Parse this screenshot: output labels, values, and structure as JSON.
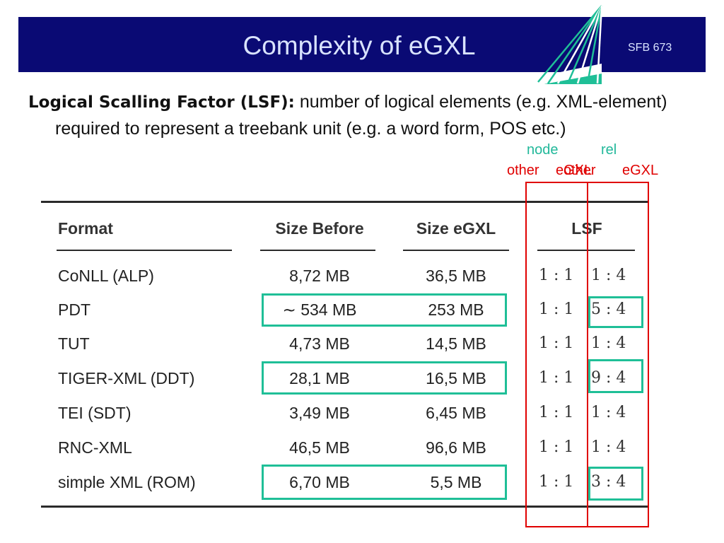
{
  "header": {
    "title": "Complexity of eGXL",
    "code": "SFB 673",
    "colors": {
      "banner": "#0a0a74",
      "title_text": "#d9e3ff"
    }
  },
  "intro": {
    "term": "Logical Scalling Factor (LSF):",
    "definition": "number of logical elements (e.g. XML-element) required to represent a treebank unit (e.g. a word form, POS etc.)"
  },
  "annotations": {
    "node": "node",
    "rel": "rel",
    "other": "other",
    "egxl_a": "eGXL",
    "other_b": "other",
    "egxl_b": "eGXL",
    "colors": {
      "green": "#21b89a",
      "red": "#e00000",
      "highlight_box": "#1fbf97"
    }
  },
  "table": {
    "headers": [
      "Format",
      "Size Before",
      "Size eGXL",
      "LSF"
    ],
    "rows": [
      {
        "format": "CoNLL (ALP)",
        "before": "8,72 MB",
        "egxl": "36,5 MB",
        "lsf_left": "1 : 1",
        "lsf_right": "1 : 4"
      },
      {
        "format": "PDT",
        "before": "∼ 534 MB",
        "egxl": "253 MB",
        "lsf_left": "1 : 1",
        "lsf_right": "5 : 4"
      },
      {
        "format": "TUT",
        "before": "4,73 MB",
        "egxl": "14,5 MB",
        "lsf_left": "1 : 1",
        "lsf_right": "1 : 4"
      },
      {
        "format": "TIGER-XML (DDT)",
        "before": "28,1 MB",
        "egxl": "16,5 MB",
        "lsf_left": "1 : 1",
        "lsf_right": "9 : 4"
      },
      {
        "format": "TEI (SDT)",
        "before": "3,49 MB",
        "egxl": "6,45 MB",
        "lsf_left": "1 : 1",
        "lsf_right": "1 : 4"
      },
      {
        "format": "RNC-XML",
        "before": "46,5 MB",
        "egxl": "96,6 MB",
        "lsf_left": "1 : 1",
        "lsf_right": "1 : 4"
      },
      {
        "format": "simple XML (ROM)",
        "before": "6,70 MB",
        "egxl": "5,5 MB",
        "lsf_left": "1 : 1",
        "lsf_right": "3 : 4"
      }
    ]
  }
}
